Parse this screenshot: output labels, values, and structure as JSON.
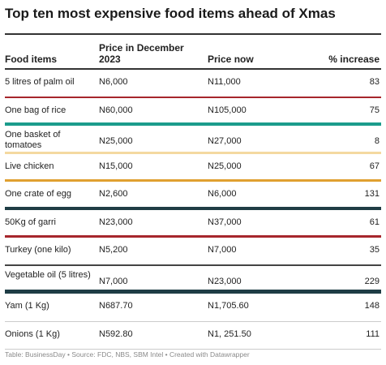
{
  "title": "Top ten most expensive food items ahead of Xmas",
  "footer": "Table: BusinessDay • Source: FDC, NBS, SBM Intel • Created with Datawrapper",
  "chart_data": {
    "type": "table",
    "columns": [
      "Food items",
      "Price in December 2023",
      "Price now",
      "% increase"
    ],
    "rows": [
      {
        "item": "5 litres of palm oil",
        "dec2023": "N6,000",
        "now": "N11,000",
        "increase": "83",
        "color": "#a6262c"
      },
      {
        "item": "One bag of rice",
        "dec2023": "N60,000",
        "now": "N105,000",
        "increase": "75",
        "color": "#1b9c8c"
      },
      {
        "item": "One basket of tomatoes",
        "dec2023": "N25,000",
        "now": "N27,000",
        "increase": "8",
        "color": "#f4d9a0"
      },
      {
        "item": "Live chicken",
        "dec2023": "N15,000",
        "now": "N25,000",
        "increase": "67",
        "color": "#e0a030"
      },
      {
        "item": "One crate of egg",
        "dec2023": "N2,600",
        "now": "N6,000",
        "increase": "131",
        "color": "#1f3d45"
      },
      {
        "item": "50Kg of garri",
        "dec2023": "N23,000",
        "now": "N37,000",
        "increase": "61",
        "color": "#a6262c"
      },
      {
        "item": "Turkey (one kilo)",
        "dec2023": "N5,200",
        "now": "N7,000",
        "increase": "35",
        "color": "#444444"
      },
      {
        "item": "Vegetable oil (5 litres)",
        "dec2023": "N7,000",
        "now": "N23,000",
        "increase": "229",
        "color": "#1f3d45"
      },
      {
        "item": "Yam (1 Kg)",
        "dec2023": "N687.70",
        "now": "N1,705.60",
        "increase": "148",
        "color": "#cccccc"
      },
      {
        "item": "Onions (1 Kg)",
        "dec2023": "N592.80",
        "now": "N1, 251.50",
        "increase": "111",
        "color": "#cccccc"
      }
    ]
  }
}
